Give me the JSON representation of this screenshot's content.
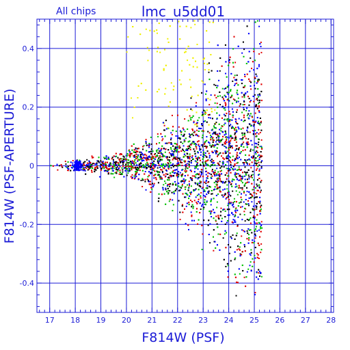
{
  "chart_data": {
    "type": "scatter",
    "title": "lmc_u5dd01",
    "subtitle": "All chips",
    "xlabel": "F814W (PSF)",
    "ylabel": "F814W (PSF-APERTURE)",
    "xlim": [
      16.5,
      28.1
    ],
    "ylim": [
      -0.5,
      0.5
    ],
    "xticks": [
      17,
      18,
      19,
      20,
      21,
      22,
      23,
      24,
      25,
      26,
      27,
      28
    ],
    "yticks": [
      -0.4,
      -0.2,
      0,
      0.2,
      0.4
    ],
    "grid": true,
    "colors": {
      "frame": "#1a1ad6",
      "grid": "#1a1ad6",
      "series": [
        "#000000",
        "#e00000",
        "#00c000",
        "#0000ff",
        "#f0f000"
      ]
    },
    "series_trend": {
      "x": [
        17,
        18,
        19,
        20,
        21,
        22,
        23,
        24,
        25
      ],
      "median_y": [
        0.0,
        0.0,
        0.0,
        0.005,
        0.01,
        0.01,
        0.015,
        0.02,
        0.02
      ],
      "scatter_halfwidth_y": [
        0.005,
        0.01,
        0.015,
        0.025,
        0.045,
        0.07,
        0.11,
        0.17,
        0.22
      ]
    },
    "x_cutoff": 25.3
  }
}
